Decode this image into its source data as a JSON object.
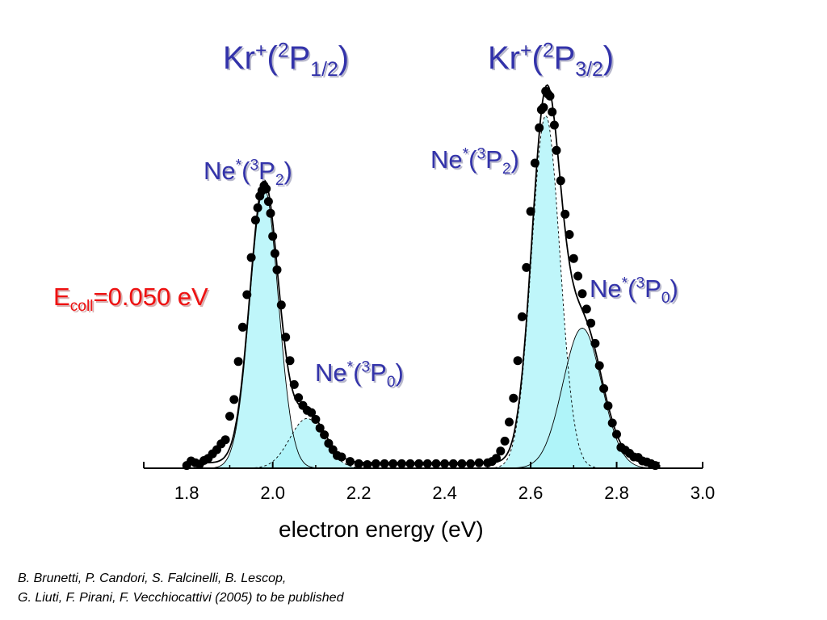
{
  "chart_data": {
    "type": "scatter",
    "xlabel": "electron energy (eV)",
    "ylabel": "",
    "xlim": [
      1.7,
      3.0
    ],
    "ylim": [
      0,
      100
    ],
    "xticks": [
      "1.8",
      "2.0",
      "2.2",
      "2.4",
      "2.6",
      "2.8",
      "3.0"
    ],
    "grid": false,
    "annotations": {
      "kr_left": {
        "base": "Kr",
        "plus": "+",
        "open": "(",
        "mult": "2",
        "term": "P",
        "j": "1/2",
        "close": ")"
      },
      "kr_right": {
        "base": "Kr",
        "plus": "+",
        "open": "(",
        "mult": "2",
        "term": "P",
        "j": "3/2",
        "close": ")"
      },
      "ne_p2_left": {
        "base": "Ne",
        "star": "*",
        "open": "(",
        "mult": "3",
        "term": "P",
        "j": "2",
        "close": ")"
      },
      "ne_p0_left": {
        "base": "Ne",
        "star": "*",
        "open": "(",
        "mult": "3",
        "term": "P",
        "j": "0",
        "close": ")"
      },
      "ne_p2_right": {
        "base": "Ne",
        "star": "*",
        "open": "(",
        "mult": "3",
        "term": "P",
        "j": "2",
        "close": ")"
      },
      "ne_p0_right": {
        "base": "Ne",
        "star": "*",
        "open": "(",
        "mult": "3",
        "term": "P",
        "j": "0",
        "close": ")"
      },
      "ecoll": {
        "e": "E",
        "sub": "coll",
        "value": "=0.050 eV"
      }
    },
    "peaks": [
      {
        "center": 1.98,
        "height": 62,
        "width": 0.033
      },
      {
        "center": 2.08,
        "height": 11,
        "width": 0.04
      },
      {
        "center": 2.635,
        "height": 78,
        "width": 0.033
      },
      {
        "center": 2.72,
        "height": 31,
        "width": 0.045
      }
    ],
    "baseline": 1.2,
    "points_x": [
      1.8,
      1.81,
      1.82,
      1.83,
      1.84,
      1.85,
      1.86,
      1.87,
      1.88,
      1.89,
      1.9,
      1.91,
      1.92,
      1.93,
      1.94,
      1.95,
      1.96,
      1.965,
      1.97,
      1.975,
      1.98,
      1.985,
      1.99,
      1.995,
      2.0,
      2.005,
      2.01,
      2.02,
      2.03,
      2.04,
      2.05,
      2.06,
      2.07,
      2.08,
      2.09,
      2.1,
      2.11,
      2.12,
      2.13,
      2.14,
      2.15,
      2.16,
      2.18,
      2.2,
      2.22,
      2.24,
      2.26,
      2.28,
      2.3,
      2.32,
      2.34,
      2.36,
      2.38,
      2.4,
      2.42,
      2.44,
      2.46,
      2.48,
      2.5,
      2.51,
      2.52,
      2.53,
      2.54,
      2.55,
      2.56,
      2.57,
      2.58,
      2.59,
      2.6,
      2.61,
      2.62,
      2.625,
      2.63,
      2.635,
      2.64,
      2.645,
      2.65,
      2.655,
      2.66,
      2.67,
      2.68,
      2.69,
      2.7,
      2.71,
      2.72,
      2.73,
      2.74,
      2.75,
      2.76,
      2.77,
      2.78,
      2.79,
      2.8,
      2.81,
      2.82,
      2.83,
      2.84,
      2.85,
      2.86,
      2.87,
      2.88,
      2.89
    ],
    "points_y": [
      0.6,
      1.6,
      1.2,
      0.9,
      1.7,
      2.2,
      3.2,
      4.1,
      5.4,
      6.3,
      11.5,
      15.2,
      23.6,
      31.2,
      38.4,
      46.6,
      54.9,
      57.6,
      60.2,
      61.4,
      62.5,
      61.8,
      59.0,
      56.4,
      51.3,
      47.5,
      43.9,
      36.1,
      29.0,
      23.8,
      18.5,
      15.6,
      13.9,
      12.8,
      12.3,
      10.8,
      8.9,
      7.4,
      5.5,
      4.1,
      2.8,
      2.5,
      1.5,
      1.0,
      0.8,
      1.0,
      1.0,
      1.0,
      1.0,
      1.0,
      1.0,
      1.0,
      1.0,
      1.0,
      1.0,
      1.0,
      1.0,
      1.2,
      1.2,
      1.5,
      2.2,
      3.8,
      6.0,
      10.2,
      15.5,
      23.8,
      33.5,
      44.4,
      56.8,
      67.5,
      75.3,
      79.3,
      79.8,
      83.4,
      82.8,
      82.3,
      78.8,
      75.9,
      70.3,
      63.6,
      56.2,
      51.7,
      46.4,
      42.5,
      38.6,
      35.2,
      32.1,
      27.6,
      22.7,
      17.6,
      13.8,
      10.0,
      7.5,
      4.6,
      4.0,
      3.3,
      2.5,
      2.4,
      1.6,
      1.4,
      1.0,
      0.6
    ]
  },
  "credits": {
    "line1": "B. Brunetti, P. Candori, S. Falcinelli, B. Lescop,",
    "line2": "G. Liuti, F. Pirani, F. Vecchiocattivi (2005) to be published"
  },
  "colors": {
    "fill": "#aaf3f8",
    "fill_overlap": "#9ae8f5",
    "label": "#3333aa",
    "ecoll": "#ee1111"
  }
}
